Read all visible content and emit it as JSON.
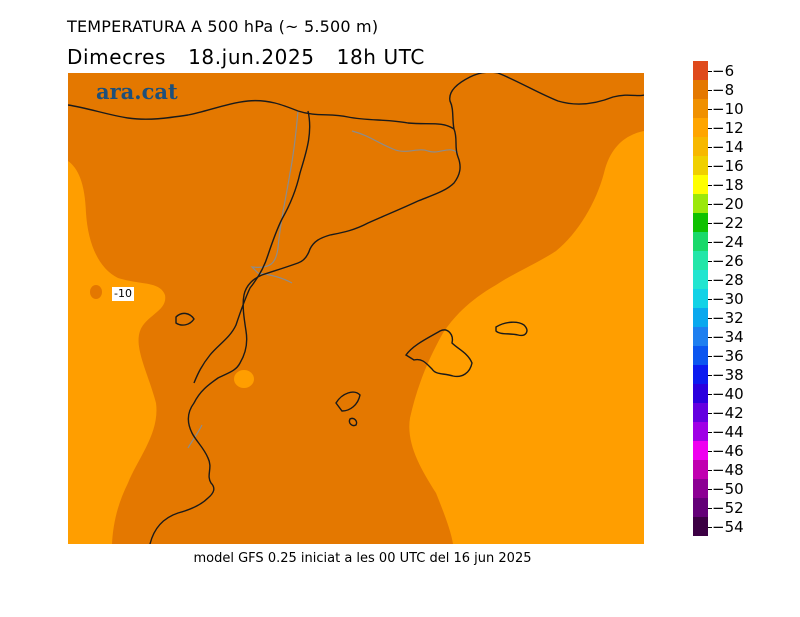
{
  "title": "TEMPERATURA A 500 hPa (~ 5.500 m)",
  "subtitle": {
    "day": "Dimecres",
    "date": "18.jun.2025",
    "time": "18h UTC"
  },
  "brand": "ara.cat",
  "contour_label": "-10",
  "footer": "model GFS 0.25 iniciat a les 00 UTC del 16 jun 2025",
  "colors": {
    "dark_orange": "#e47800",
    "light_orange": "#ff9e00",
    "coast": "#1a1a1a",
    "border": "#8c8c8c",
    "brand": "#1d4f7a"
  },
  "colorbar": {
    "labels": [
      "-6",
      "-8",
      "-10",
      "-12",
      "-14",
      "-16",
      "-18",
      "-20",
      "-22",
      "-24",
      "-26",
      "-28",
      "-30",
      "-32",
      "-34",
      "-36",
      "-38",
      "-40",
      "-42",
      "-44",
      "-46",
      "-48",
      "-50",
      "-52",
      "-54"
    ],
    "colors": [
      "#df4a1c",
      "#e47800",
      "#f09000",
      "#ffa500",
      "#f7b800",
      "#f0d000",
      "#ffff00",
      "#9be80a",
      "#0ec100",
      "#19d96a",
      "#23e6a8",
      "#22e5d0",
      "#12d2e6",
      "#0aa8ee",
      "#1e7ff0",
      "#0b56f0",
      "#0b1bf0",
      "#2a00de",
      "#6400e0",
      "#a000e6",
      "#ef00f0",
      "#c000b0",
      "#8c0094",
      "#640078",
      "#3c0044"
    ]
  }
}
